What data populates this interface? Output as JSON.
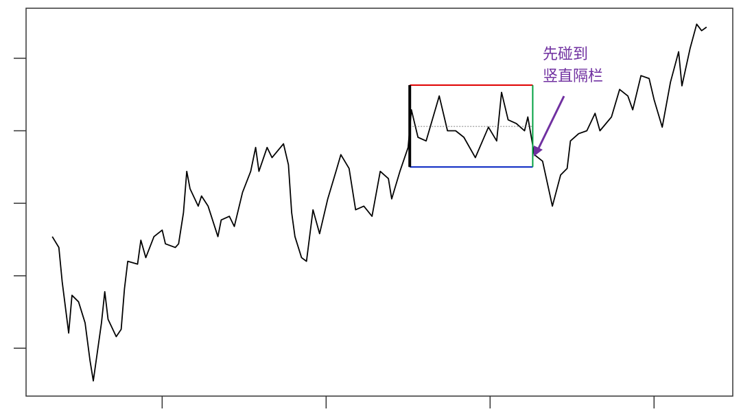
{
  "chart_data": {
    "type": "line",
    "annotation": [
      "先碰到",
      "竖直隔栏"
    ],
    "annotation_color": "#7030a0",
    "xlim": [
      0.17,
      4.48
    ],
    "xticks": [
      1,
      2,
      3,
      4
    ],
    "ylim": [
      0.34,
      5.69
    ],
    "yticks": [
      1,
      2,
      3,
      4,
      5
    ],
    "series": [
      {
        "color": "#000000",
        "x": [
          0.33,
          0.37,
          0.39,
          0.43,
          0.45,
          0.49,
          0.53,
          0.56,
          0.58,
          0.63,
          0.65,
          0.67,
          0.72,
          0.75,
          0.77,
          0.79,
          0.85,
          0.87,
          0.9,
          0.95,
          1.0,
          1.02,
          1.08,
          1.1,
          1.13,
          1.15,
          1.17,
          1.22,
          1.24,
          1.28,
          1.34,
          1.36,
          1.41,
          1.44,
          1.49,
          1.54,
          1.57,
          1.59,
          1.64,
          1.67,
          1.74,
          1.77,
          1.79,
          1.81,
          1.85,
          1.88,
          1.92,
          1.96,
          2.01,
          2.06,
          2.09,
          2.14,
          2.18,
          2.23,
          2.28,
          2.33,
          2.38,
          2.4,
          2.45,
          2.5,
          2.52,
          2.56,
          2.61,
          2.69,
          2.74,
          2.79,
          2.84,
          2.91,
          2.99,
          3.04,
          3.07,
          3.11,
          3.16,
          3.21,
          3.23,
          3.27,
          3.32,
          3.38,
          3.43,
          3.47,
          3.49,
          3.54,
          3.59,
          3.64,
          3.67,
          3.74,
          3.79,
          3.84,
          3.87,
          3.92,
          3.97,
          4.0,
          4.05,
          4.1,
          4.15,
          4.17,
          4.22,
          4.26,
          4.29,
          4.32
        ],
        "values": [
          2.54,
          2.39,
          1.92,
          1.21,
          1.73,
          1.64,
          1.35,
          0.83,
          0.55,
          1.35,
          1.78,
          1.4,
          1.16,
          1.26,
          1.82,
          2.2,
          2.16,
          2.49,
          2.25,
          2.54,
          2.63,
          2.44,
          2.39,
          2.44,
          2.87,
          3.44,
          3.2,
          2.96,
          3.1,
          2.96,
          2.54,
          2.77,
          2.82,
          2.68,
          3.15,
          3.44,
          3.77,
          3.44,
          3.77,
          3.63,
          3.82,
          3.53,
          2.87,
          2.54,
          2.25,
          2.2,
          2.91,
          2.58,
          3.06,
          3.44,
          3.67,
          3.48,
          2.91,
          2.96,
          2.82,
          3.44,
          3.34,
          3.06,
          3.44,
          3.77,
          4.29,
          3.91,
          3.86,
          4.48,
          4.0,
          4.0,
          3.91,
          3.63,
          4.05,
          3.86,
          4.53,
          4.15,
          4.1,
          4.0,
          4.19,
          3.67,
          3.58,
          2.96,
          3.39,
          3.48,
          3.86,
          3.96,
          4.0,
          4.24,
          4.0,
          4.19,
          4.57,
          4.48,
          4.29,
          4.76,
          4.72,
          4.43,
          4.05,
          4.67,
          5.09,
          4.62,
          5.14,
          5.47,
          5.38,
          5.43
        ]
      }
    ],
    "barriers": {
      "start": 2.51,
      "end": 3.26,
      "upper": 4.63,
      "lower": 3.5,
      "entry": 4.06,
      "upper_color": "#e00000",
      "lower_color": "#0020c0",
      "vertical_color": "#00a040",
      "start_color": "#000000"
    }
  }
}
